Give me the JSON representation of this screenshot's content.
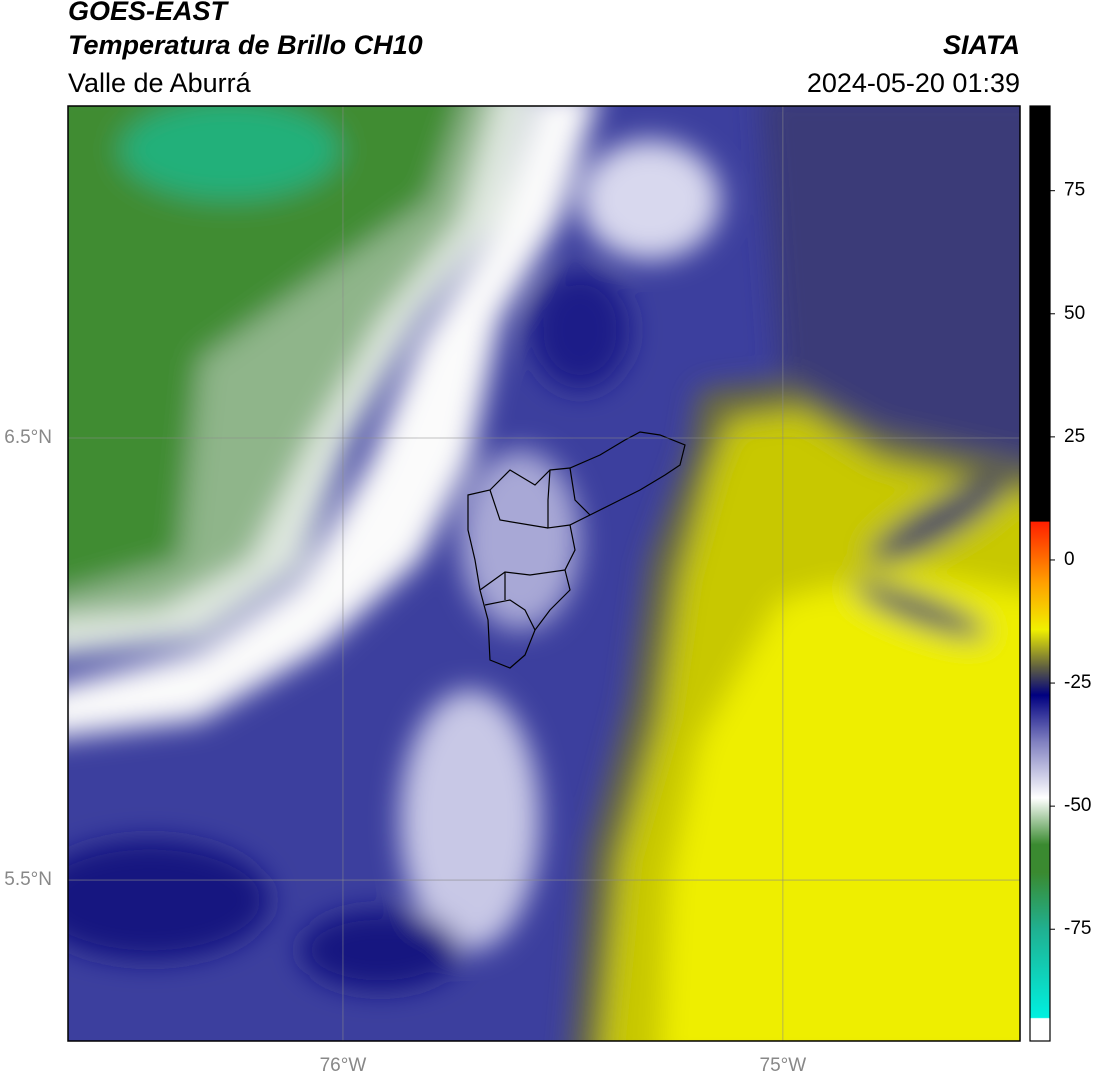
{
  "header": {
    "title": "GOES-EAST",
    "subtitle": "Temperatura de Brillo CH10",
    "region": "Valle de Aburrá",
    "source": "SIATA",
    "timestamp": "2024-05-20 01:39"
  },
  "map": {
    "lonlim": [
      -76.625,
      -74.461
    ],
    "latlim": [
      5.136,
      7.251
    ],
    "lon_ticks": [
      {
        "value": -76,
        "label": "76°W"
      },
      {
        "value": -75,
        "label": "75°W"
      }
    ],
    "lat_ticks": [
      {
        "value": 6.5,
        "label": "6.5°N"
      },
      {
        "value": 5.5,
        "label": "5.5°N"
      }
    ]
  },
  "colorbar": {
    "lim": [
      -97.7,
      92.2
    ],
    "ticks": [
      -75,
      -50,
      -25,
      0,
      25,
      50,
      75
    ]
  }
}
